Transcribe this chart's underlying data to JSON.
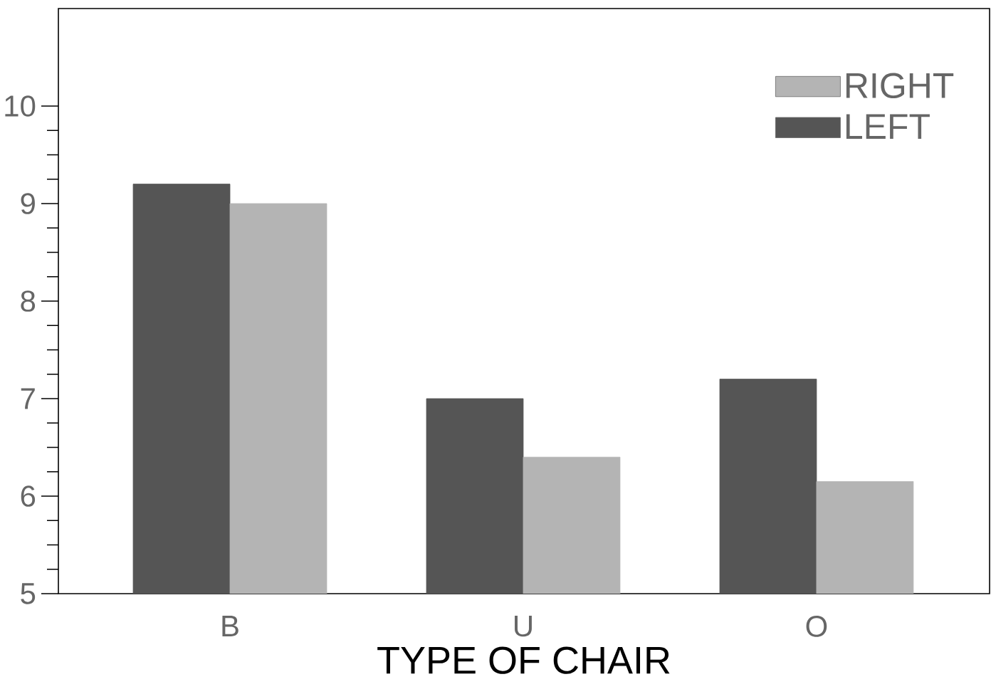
{
  "chart_data": {
    "type": "bar",
    "xlabel": "TYPE OF CHAIR",
    "categories": [
      "B",
      "U",
      "O"
    ],
    "series": [
      {
        "name": "LEFT",
        "color": "#555555",
        "values": [
          9.2,
          7.0,
          7.2
        ]
      },
      {
        "name": "RIGHT",
        "color": "#b4b4b4",
        "values": [
          9.0,
          6.4,
          6.15
        ]
      }
    ],
    "ylim": [
      5,
      11
    ],
    "yticks": [
      5,
      6,
      7,
      8,
      9,
      10
    ],
    "grid": false,
    "legend": "top right"
  }
}
